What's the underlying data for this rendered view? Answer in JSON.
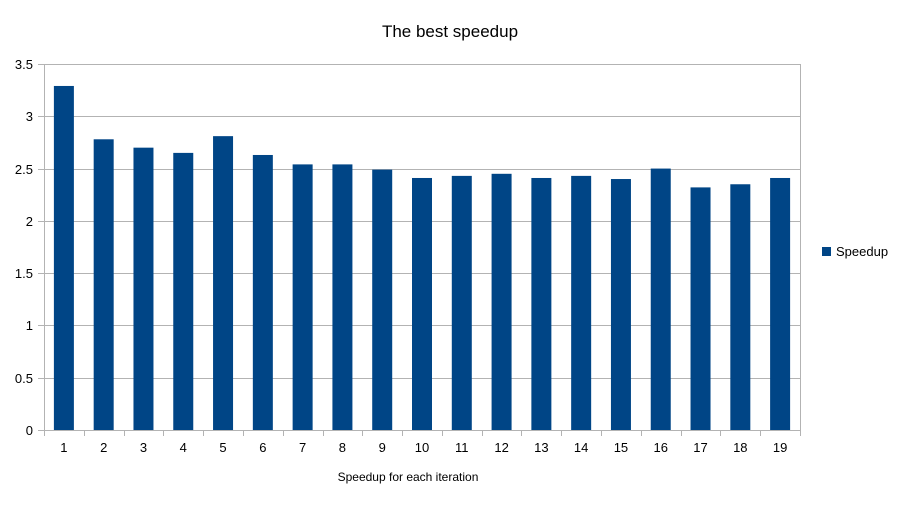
{
  "chart_data": {
    "type": "bar",
    "title": "The best speedup",
    "xlabel": "Speedup for each iteration",
    "ylabel": "",
    "ylim": [
      0,
      3.5
    ],
    "yticks": [
      "0",
      "0.5",
      "1",
      "1.5",
      "2",
      "2.5",
      "3",
      "3.5"
    ],
    "grid": true,
    "legend_position": "right",
    "categories": [
      "1",
      "2",
      "3",
      "4",
      "5",
      "6",
      "7",
      "8",
      "9",
      "10",
      "11",
      "12",
      "13",
      "14",
      "15",
      "16",
      "17",
      "18",
      "19"
    ],
    "series": [
      {
        "name": "Speedup",
        "color": "#004586",
        "values": [
          3.29,
          2.78,
          2.7,
          2.65,
          2.81,
          2.63,
          2.54,
          2.54,
          2.49,
          2.41,
          2.43,
          2.45,
          2.41,
          2.43,
          2.4,
          2.5,
          2.32,
          2.35,
          2.41
        ]
      }
    ]
  },
  "colors": {
    "bar": "#004586",
    "grid": "#b3b3b3",
    "axis": "#b3b3b3"
  }
}
